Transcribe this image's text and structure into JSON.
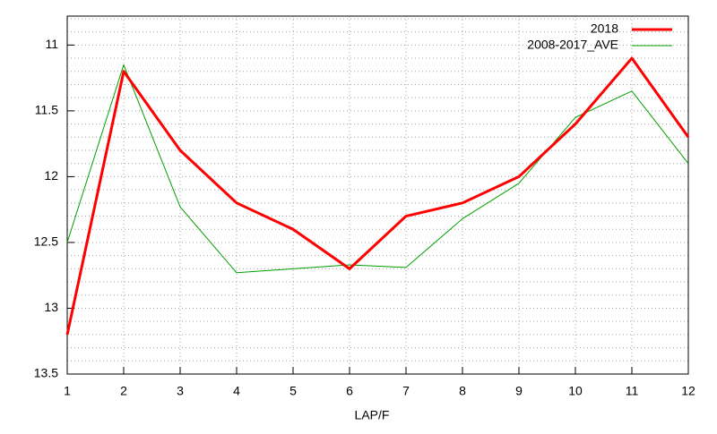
{
  "chart_data": {
    "type": "line",
    "xlabel": "LAP/F",
    "x": [
      1,
      2,
      3,
      4,
      5,
      6,
      7,
      8,
      9,
      10,
      11,
      12
    ],
    "series": [
      {
        "name": "2018",
        "color": "#ff0000",
        "values": [
          13.2,
          11.2,
          11.8,
          12.2,
          12.4,
          12.7,
          12.3,
          12.2,
          12.0,
          11.6,
          11.1,
          11.7
        ]
      },
      {
        "name": "2008-2017_AVE",
        "color": "#00a000",
        "values": [
          12.5,
          11.15,
          12.23,
          12.73,
          12.7,
          12.67,
          12.69,
          12.32,
          12.05,
          11.55,
          11.35,
          11.9
        ]
      }
    ],
    "xlim": [
      1,
      12
    ],
    "xticks": [
      1,
      2,
      3,
      4,
      5,
      6,
      7,
      8,
      9,
      10,
      11,
      12
    ],
    "ylim": [
      13.5,
      10.78
    ],
    "yticks": [
      11,
      11.5,
      12,
      12.5,
      13,
      13.5
    ],
    "yminorticks": [
      10.8,
      10.9,
      11.1,
      11.2,
      11.3,
      11.4,
      11.6,
      11.7,
      11.8,
      11.9,
      12.1,
      12.2,
      12.3,
      12.4,
      12.6,
      12.7,
      12.8,
      12.9,
      13.1,
      13.2,
      13.3,
      13.4
    ],
    "grid": true,
    "legend": "top-right"
  }
}
